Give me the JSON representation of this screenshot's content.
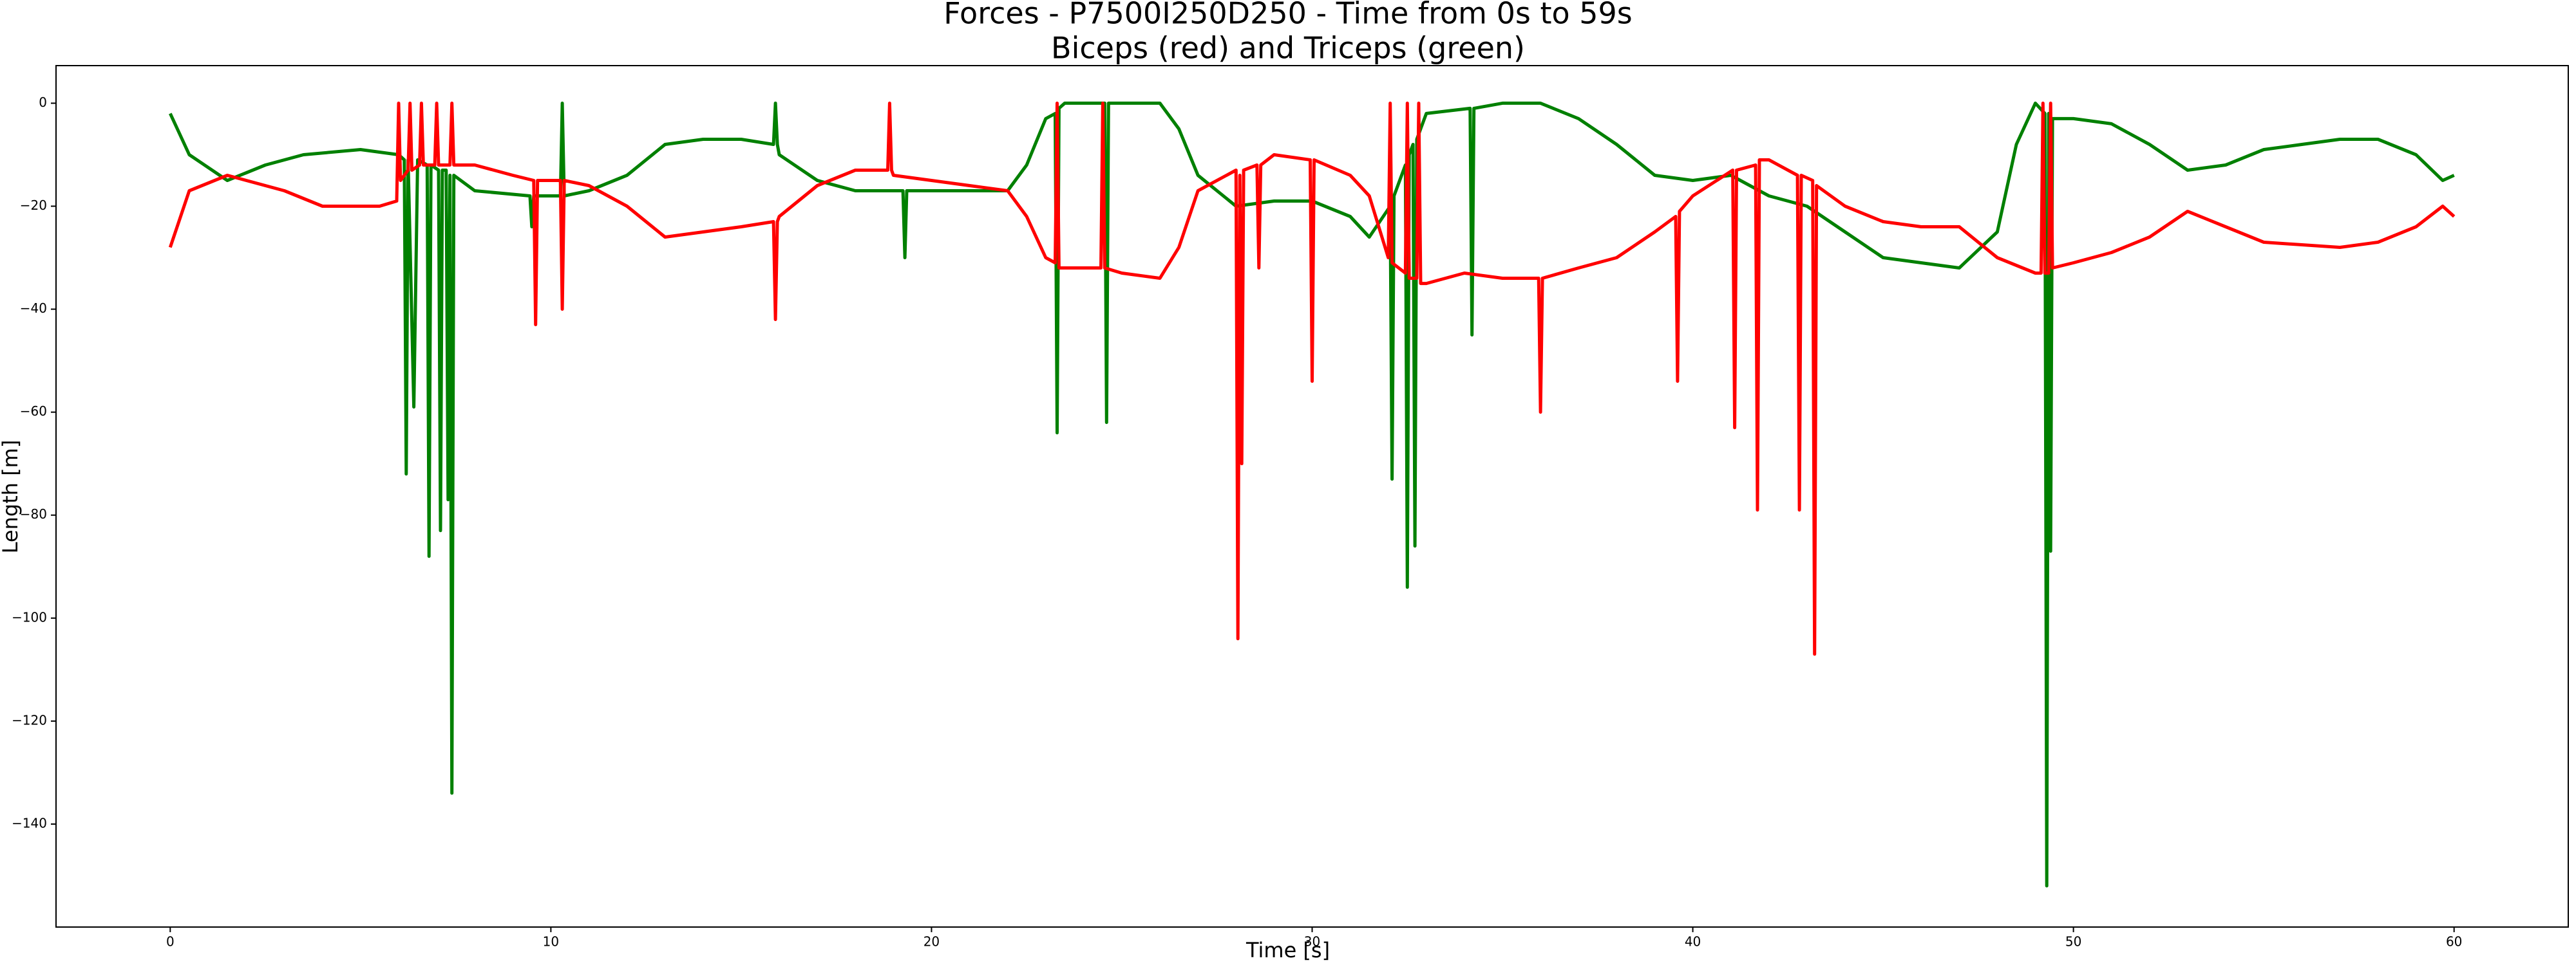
{
  "chart_data": {
    "type": "line",
    "title": "Forces - P7500I250D250 - Time from 0s to 59s",
    "subtitle": "Biceps (red) and Triceps (green)",
    "x_label": "Time [s]",
    "y_label": "Length [m]",
    "xlim": [
      -3,
      63
    ],
    "ylim": [
      -160,
      7.3
    ],
    "xticks": [
      0,
      10,
      20,
      30,
      40,
      50,
      60
    ],
    "yticks": [
      {
        "value": -140,
        "label": "−140"
      },
      {
        "value": -120,
        "label": "−120"
      },
      {
        "value": -100,
        "label": "−100"
      },
      {
        "value": -80,
        "label": "−80"
      },
      {
        "value": -60,
        "label": "−60"
      },
      {
        "value": -40,
        "label": "−40"
      },
      {
        "value": -20,
        "label": "−20"
      },
      0
    ],
    "grid": false,
    "series": [
      {
        "color": "#008000",
        "x": [
          0,
          0.5,
          1.5,
          2.5,
          3.5,
          5,
          6,
          6.15,
          6.2,
          6.25,
          6.4,
          6.5,
          6.75,
          6.8,
          6.85,
          7.05,
          7.1,
          7.15,
          7.25,
          7.3,
          7.35,
          7.4,
          7.45,
          8,
          9.45,
          9.5,
          9.55,
          10,
          10.25,
          10.3,
          10.35,
          11,
          12,
          13,
          14,
          15,
          15.85,
          15.9,
          15.95,
          16,
          17,
          18,
          19.25,
          19.3,
          19.35,
          20,
          22,
          22.5,
          23,
          23.25,
          23.3,
          23.35,
          23.5,
          24.55,
          24.6,
          24.65,
          26,
          26.5,
          27,
          28,
          29,
          30,
          31,
          31.5,
          32.05,
          32.1,
          32.15,
          32.45,
          32.5,
          32.55,
          32.65,
          32.7,
          32.75,
          33,
          34.15,
          34.2,
          34.25,
          35,
          36,
          37,
          38,
          39,
          40,
          41,
          42,
          43,
          44,
          45,
          46,
          47,
          48,
          48.5,
          49,
          49.25,
          49.3,
          49.35,
          49.4,
          49.45,
          50,
          51,
          52,
          53,
          54,
          55,
          56,
          57,
          58,
          59,
          59.7,
          60
        ],
        "values": [
          -2,
          -10,
          -15,
          -12,
          -10,
          -9,
          -10,
          -11,
          -72,
          -11,
          -59,
          -11,
          -12,
          -88,
          -12,
          -13,
          -83,
          -13,
          -13,
          -77,
          -14,
          -134,
          -14,
          -17,
          -18,
          -24,
          -18,
          -18,
          -18,
          0,
          -18,
          -17,
          -14,
          -8,
          -7,
          -7,
          -8,
          0,
          -8,
          -10,
          -15,
          -17,
          -17,
          -30,
          -17,
          -17,
          -17,
          -12,
          -3,
          -2,
          -64,
          -1,
          0,
          0,
          -62,
          0,
          0,
          -5,
          -14,
          -20,
          -19,
          -19,
          -22,
          -26,
          -20,
          -73,
          -18,
          -12,
          -94,
          -10,
          -8,
          -86,
          -7,
          -2,
          -1,
          -45,
          -1,
          0,
          0,
          -3,
          -8,
          -14,
          -15,
          -14,
          -18,
          -20,
          -25,
          -30,
          -31,
          -32,
          -25,
          -8,
          0,
          -2,
          -152,
          -2,
          -87,
          -3,
          -3,
          -4,
          -8,
          -13,
          -12,
          -9,
          -8,
          -7,
          -7,
          -10,
          -15,
          -14
        ]
      },
      {
        "color": "#ff0000",
        "x": [
          0,
          0.5,
          1.5,
          2,
          3,
          4,
          5.5,
          5.95,
          6,
          6.05,
          6.25,
          6.3,
          6.35,
          6.55,
          6.6,
          6.65,
          6.95,
          7,
          7.05,
          7.35,
          7.4,
          7.45,
          8,
          9,
          9.55,
          9.6,
          9.65,
          10.25,
          10.3,
          10.35,
          11,
          12,
          13,
          14,
          15,
          15.85,
          15.9,
          15.95,
          16,
          17,
          18,
          18.85,
          18.9,
          18.95,
          19,
          20,
          21,
          22,
          22.5,
          23,
          23.25,
          23.3,
          23.35,
          24.45,
          24.5,
          24.55,
          25,
          26,
          26.5,
          27,
          28,
          28.05,
          28.1,
          28.15,
          28.2,
          28.55,
          28.6,
          28.65,
          29,
          29.95,
          30,
          30.05,
          31,
          31.5,
          32,
          32.05,
          32.1,
          32.45,
          32.5,
          32.55,
          32.75,
          32.8,
          32.85,
          33,
          34,
          35,
          35.95,
          36,
          36.05,
          37,
          38,
          39,
          39.55,
          39.6,
          39.65,
          40,
          41.05,
          41.1,
          41.15,
          41.65,
          41.7,
          41.75,
          42,
          42.75,
          42.8,
          42.85,
          43.15,
          43.2,
          43.25,
          44,
          45,
          46,
          47,
          48,
          49,
          49.15,
          49.2,
          49.25,
          49.35,
          49.4,
          49.45,
          50,
          51,
          52,
          53,
          54,
          55,
          57,
          58,
          59,
          59.7,
          60
        ],
        "values": [
          -28,
          -17,
          -14,
          -15,
          -17,
          -20,
          -20,
          -19,
          0,
          -15,
          -13,
          0,
          -13,
          -12,
          0,
          -12,
          -12,
          0,
          -12,
          -12,
          0,
          -12,
          -12,
          -14,
          -15,
          -43,
          -15,
          -15,
          -40,
          -15,
          -16,
          -20,
          -26,
          -25,
          -24,
          -23,
          -42,
          -23,
          -22,
          -16,
          -13,
          -13,
          0,
          -13,
          -14,
          -15,
          -16,
          -17,
          -22,
          -30,
          -31,
          0,
          -32,
          -32,
          0,
          -32,
          -33,
          -34,
          -28,
          -17,
          -13,
          -104,
          -14,
          -70,
          -13,
          -12,
          -32,
          -12,
          -10,
          -11,
          -54,
          -11,
          -14,
          -18,
          -30,
          0,
          -31,
          -33,
          0,
          -34,
          -34,
          0,
          -35,
          -35,
          -33,
          -34,
          -34,
          -60,
          -34,
          -32,
          -30,
          -25,
          -22,
          -54,
          -21,
          -18,
          -13,
          -63,
          -13,
          -12,
          -79,
          -11,
          -11,
          -14,
          -79,
          -14,
          -15,
          -107,
          -16,
          -20,
          -23,
          -24,
          -24,
          -30,
          -33,
          -33,
          0,
          -33,
          -33,
          0,
          -32,
          -31,
          -29,
          -26,
          -21,
          -24,
          -27,
          -28,
          -27,
          -24,
          -20,
          -22
        ]
      }
    ]
  }
}
